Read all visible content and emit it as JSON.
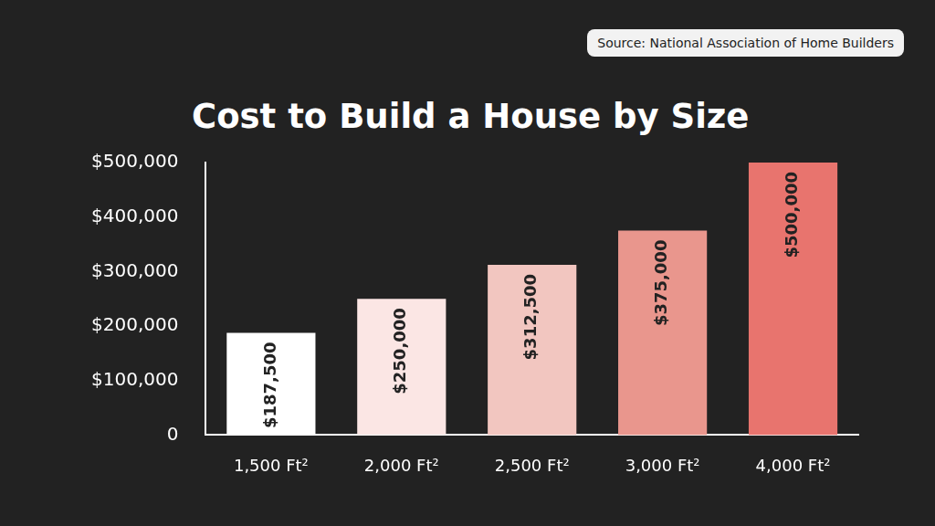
{
  "chart_data": {
    "type": "bar",
    "title": "Cost to Build a House by Size",
    "annotations": [
      "Source: National Association of Home Builders"
    ],
    "categories": [
      "1,500 Ft²",
      "2,000 Ft²",
      "2,500 Ft²",
      "3,000 Ft²",
      "4,000 Ft²"
    ],
    "values": [
      187500,
      250000,
      312500,
      375000,
      500000
    ],
    "value_labels": [
      "$187,500",
      "$250,000",
      "$312,500",
      "$375,000",
      "$500,000"
    ],
    "data_labels": true,
    "colors": [
      "#ffffff",
      "#fbe6e4",
      "#f2c6c0",
      "#e9968d",
      "#e8746e"
    ],
    "ylim": [
      0,
      500000
    ],
    "yticks": [
      0,
      {
        "value": 100000,
        "label": "$100,000"
      },
      {
        "value": 200000,
        "label": "$200,000"
      },
      {
        "value": 300000,
        "label": "$300,000"
      },
      {
        "value": 400000,
        "label": "$400,000"
      },
      {
        "value": 500000,
        "label": "$500,000"
      }
    ],
    "grid": false
  }
}
